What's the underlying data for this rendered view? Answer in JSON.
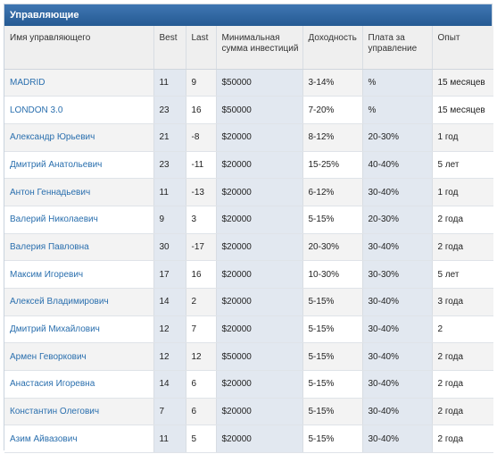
{
  "title": "Управляющие",
  "columns": [
    "Имя управляющего",
    "Best",
    "Last",
    "Минимальная сумма инвестиций",
    "Доходность",
    "Плата за управление",
    "Опыт"
  ],
  "rows": [
    [
      "MADRID",
      "11",
      "9",
      "$50000",
      "3-14%",
      "%",
      "15 месяцев"
    ],
    [
      "LONDON 3.0",
      "23",
      "16",
      "$50000",
      "7-20%",
      "%",
      "15 месяцев"
    ],
    [
      "Александр Юрьевич",
      "21",
      "-8",
      "$20000",
      "8-12%",
      "20-30%",
      "1 год"
    ],
    [
      "Дмитрий Анатольевич",
      "23",
      "-11",
      "$20000",
      "15-25%",
      "40-40%",
      "5 лет"
    ],
    [
      "Антон Геннадьевич",
      "11",
      "-13",
      "$20000",
      "6-12%",
      "30-40%",
      "1 год"
    ],
    [
      "Валерий Николаевич",
      "9",
      "3",
      "$20000",
      "5-15%",
      "20-30%",
      "2 года"
    ],
    [
      "Валерия Павловна",
      "30",
      "-17",
      "$20000",
      "20-30%",
      "30-40%",
      "2 года"
    ],
    [
      "Максим Игоревич",
      "17",
      "16",
      "$20000",
      "10-30%",
      "30-30%",
      "5 лет"
    ],
    [
      "Алексей Владимирович",
      "14",
      "2",
      "$20000",
      "5-15%",
      "30-40%",
      "3 года"
    ],
    [
      "Дмитрий Михайлович",
      "12",
      "7",
      "$20000",
      "5-15%",
      "30-40%",
      "2"
    ],
    [
      "Армен Геворкович",
      "12",
      "12",
      "$50000",
      "5-15%",
      "30-40%",
      "2 года"
    ],
    [
      "Анастасия Игоревна",
      "14",
      "6",
      "$20000",
      "5-15%",
      "30-40%",
      "2 года"
    ],
    [
      "Константин Олегович",
      "7",
      "6",
      "$20000",
      "5-15%",
      "30-40%",
      "2 года"
    ],
    [
      "Азим Айвазович",
      "11",
      "5",
      "$20000",
      "5-15%",
      "30-40%",
      "2 года"
    ]
  ]
}
